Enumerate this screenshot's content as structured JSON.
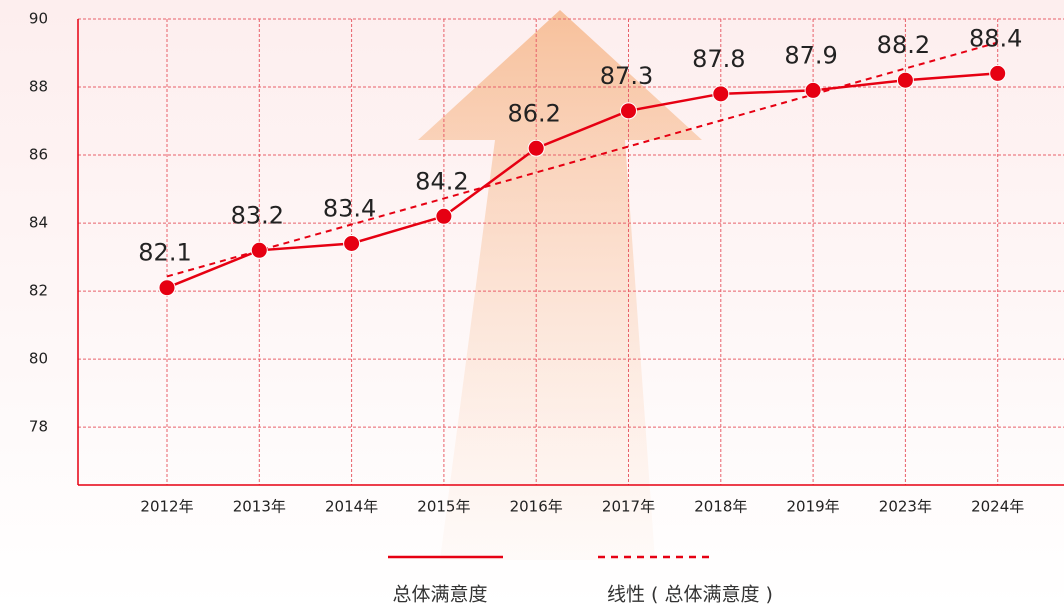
{
  "chart_data": {
    "type": "line",
    "categories": [
      "2012年",
      "2013年",
      "2014年",
      "2015年",
      "2016年",
      "2017年",
      "2018年",
      "2019年",
      "2023年",
      "2024年"
    ],
    "series": [
      {
        "name": "总体满意度",
        "color": "#e60012",
        "values": [
          82.1,
          83.2,
          83.4,
          84.2,
          86.2,
          87.3,
          87.8,
          87.9,
          88.2,
          88.4
        ]
      }
    ],
    "trendline": {
      "name": "线性 ( 总体满意度 )",
      "type": "linear",
      "color": "#e60012"
    },
    "ylim": [
      76.3,
      90
    ],
    "yticks": [
      78,
      80,
      82,
      84,
      86,
      88,
      90
    ],
    "grid": true
  }
}
